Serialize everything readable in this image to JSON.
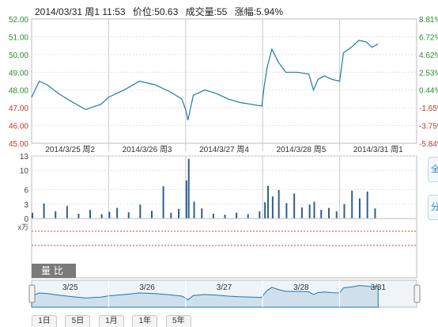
{
  "info": {
    "datetime": "2014/03/31 周1 11:53",
    "price_label": "价位:",
    "price": "50.63",
    "volume_label": "成交量:",
    "volume": "55",
    "change_label": "涨幅:",
    "change": "5.94%"
  },
  "side_buttons": [
    "全",
    "分"
  ],
  "volume_tab": "量比",
  "volume_unit": "x万",
  "bottom_tabs": [
    "1日",
    "5日",
    "1月",
    "1年",
    "5年"
  ],
  "chart_data": {
    "type": "line",
    "price_axis": {
      "ticks": [
        52.0,
        51.0,
        50.0,
        49.0,
        48.0,
        47.0,
        46.0,
        45.0
      ],
      "tick_labels": [
        "52.00",
        "51.00",
        "50.00",
        "49.00",
        "48.00",
        "47.00",
        "46.00",
        "45.00"
      ],
      "range": [
        45.0,
        52.0
      ]
    },
    "pct_axis": {
      "tick_labels": [
        "8.81%",
        "6.72%",
        "4.62%",
        "2.53%",
        "0.44%",
        "-1.65%",
        "-3.75%",
        "-5.84%"
      ]
    },
    "day_labels": [
      "2014/3/25 周2",
      "2014/3/26 周3",
      "2014/3/27 周4",
      "2014/3/28 周5",
      "2014/3/31 周1"
    ],
    "price_series": [
      {
        "x": 0.0,
        "y": 47.6
      },
      {
        "x": 0.1,
        "y": 48.5
      },
      {
        "x": 0.2,
        "y": 48.3
      },
      {
        "x": 0.35,
        "y": 47.8
      },
      {
        "x": 0.5,
        "y": 47.4
      },
      {
        "x": 0.7,
        "y": 46.9
      },
      {
        "x": 0.9,
        "y": 47.2
      },
      {
        "x": 1.0,
        "y": 47.6
      },
      {
        "x": 1.2,
        "y": 48.0
      },
      {
        "x": 1.4,
        "y": 48.5
      },
      {
        "x": 1.6,
        "y": 48.3
      },
      {
        "x": 1.8,
        "y": 47.9
      },
      {
        "x": 1.95,
        "y": 47.5
      },
      {
        "x": 2.0,
        "y": 46.9
      },
      {
        "x": 2.03,
        "y": 46.3
      },
      {
        "x": 2.1,
        "y": 47.7
      },
      {
        "x": 2.25,
        "y": 48.0
      },
      {
        "x": 2.4,
        "y": 47.8
      },
      {
        "x": 2.55,
        "y": 47.5
      },
      {
        "x": 2.7,
        "y": 47.3
      },
      {
        "x": 2.85,
        "y": 47.2
      },
      {
        "x": 2.99,
        "y": 47.1
      },
      {
        "x": 3.02,
        "y": 48.2
      },
      {
        "x": 3.06,
        "y": 49.3
      },
      {
        "x": 3.12,
        "y": 50.3
      },
      {
        "x": 3.2,
        "y": 49.6
      },
      {
        "x": 3.3,
        "y": 49.0
      },
      {
        "x": 3.45,
        "y": 49.0
      },
      {
        "x": 3.6,
        "y": 48.9
      },
      {
        "x": 3.66,
        "y": 48.0
      },
      {
        "x": 3.72,
        "y": 48.6
      },
      {
        "x": 3.8,
        "y": 48.8
      },
      {
        "x": 3.9,
        "y": 48.6
      },
      {
        "x": 4.0,
        "y": 48.5
      },
      {
        "x": 4.05,
        "y": 50.1
      },
      {
        "x": 4.15,
        "y": 50.4
      },
      {
        "x": 4.25,
        "y": 50.8
      },
      {
        "x": 4.35,
        "y": 50.7
      },
      {
        "x": 4.42,
        "y": 50.4
      },
      {
        "x": 4.5,
        "y": 50.6
      }
    ],
    "volume_axis": {
      "tick_labels": [
        "13",
        "10",
        "6",
        "3",
        "0"
      ],
      "range": [
        0,
        13
      ]
    },
    "volume_series": [
      {
        "x": 0.0,
        "v": 1.2
      },
      {
        "x": 0.15,
        "v": 3.1
      },
      {
        "x": 0.3,
        "v": 1.5
      },
      {
        "x": 0.45,
        "v": 2.6
      },
      {
        "x": 0.6,
        "v": 1.0
      },
      {
        "x": 0.75,
        "v": 1.8
      },
      {
        "x": 0.9,
        "v": 0.9
      },
      {
        "x": 1.0,
        "v": 1.4
      },
      {
        "x": 1.1,
        "v": 2.2
      },
      {
        "x": 1.25,
        "v": 1.3
      },
      {
        "x": 1.4,
        "v": 2.9
      },
      {
        "x": 1.55,
        "v": 1.6
      },
      {
        "x": 1.7,
        "v": 6.7
      },
      {
        "x": 1.8,
        "v": 1.2
      },
      {
        "x": 1.9,
        "v": 2.0
      },
      {
        "x": 2.0,
        "v": 7.9
      },
      {
        "x": 2.03,
        "v": 12.4
      },
      {
        "x": 2.1,
        "v": 3.5
      },
      {
        "x": 2.2,
        "v": 2.1
      },
      {
        "x": 2.35,
        "v": 1.0
      },
      {
        "x": 2.5,
        "v": 0.8
      },
      {
        "x": 2.65,
        "v": 1.2
      },
      {
        "x": 2.8,
        "v": 0.9
      },
      {
        "x": 2.95,
        "v": 1.5
      },
      {
        "x": 3.02,
        "v": 3.4
      },
      {
        "x": 3.06,
        "v": 6.8
      },
      {
        "x": 3.12,
        "v": 4.6
      },
      {
        "x": 3.2,
        "v": 5.9
      },
      {
        "x": 3.3,
        "v": 3.2
      },
      {
        "x": 3.4,
        "v": 5.2
      },
      {
        "x": 3.5,
        "v": 2.3
      },
      {
        "x": 3.6,
        "v": 2.9
      },
      {
        "x": 3.66,
        "v": 3.5
      },
      {
        "x": 3.75,
        "v": 1.8
      },
      {
        "x": 3.85,
        "v": 2.2
      },
      {
        "x": 3.95,
        "v": 1.5
      },
      {
        "x": 4.05,
        "v": 3.0
      },
      {
        "x": 4.15,
        "v": 5.8
      },
      {
        "x": 4.25,
        "v": 4.2
      },
      {
        "x": 4.35,
        "v": 5.6
      },
      {
        "x": 4.45,
        "v": 2.1
      }
    ],
    "navigator": {
      "labels": [
        "3/25",
        "3/26",
        "3/27",
        "3/28",
        "3/31"
      ]
    },
    "colors": {
      "line": "#1b79b5",
      "bars": "#2f5e94",
      "up_axis": "#2a8a2a",
      "down_axis": "#c0392b",
      "grid": "#e2e2e2",
      "navigator_fill": "#cfe0ec"
    }
  }
}
